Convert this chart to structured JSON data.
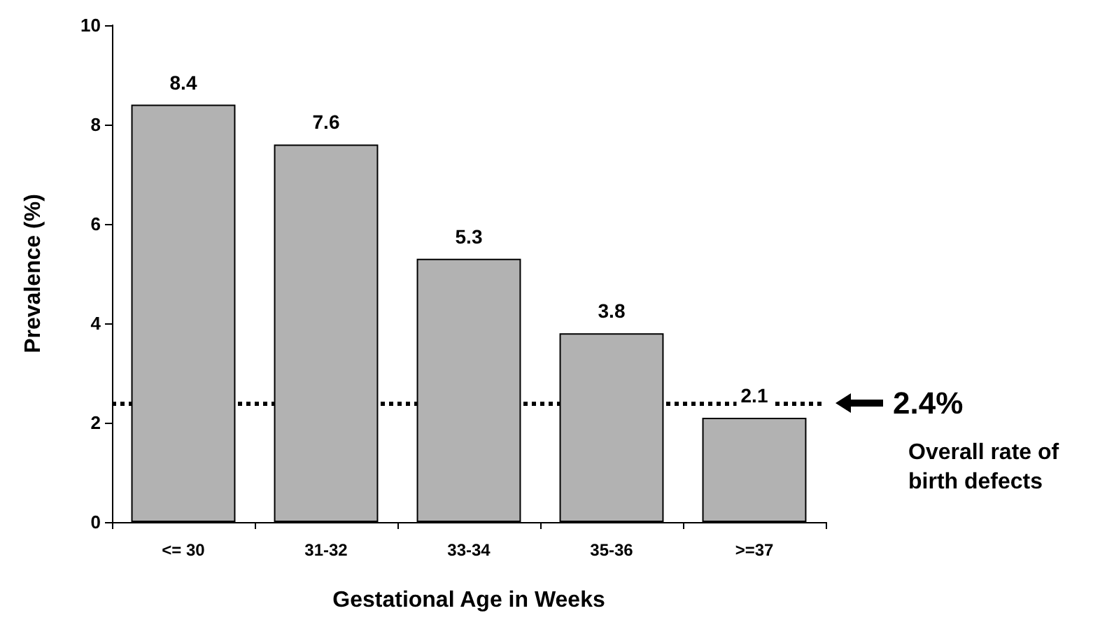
{
  "chart_data": {
    "type": "bar",
    "xlabel": "Gestational Age in Weeks",
    "ylabel": "Prevalence (%)",
    "categories": [
      "<= 30",
      "31-32",
      "33-34",
      "35-36",
      ">=37"
    ],
    "values": [
      8.4,
      7.6,
      5.3,
      3.8,
      2.1
    ],
    "color": "#b2b2b2",
    "ylim": [
      0,
      10
    ],
    "yticks": [
      0,
      2,
      4,
      6,
      8,
      10
    ],
    "grid": false,
    "data_labels": true,
    "ref_lines": [
      {
        "axis": "y",
        "value": 2.4,
        "label": "2.4%",
        "line_style": "dotted",
        "color": "#000000"
      }
    ],
    "annotations": [
      "Overall rate of birth defects"
    ]
  }
}
